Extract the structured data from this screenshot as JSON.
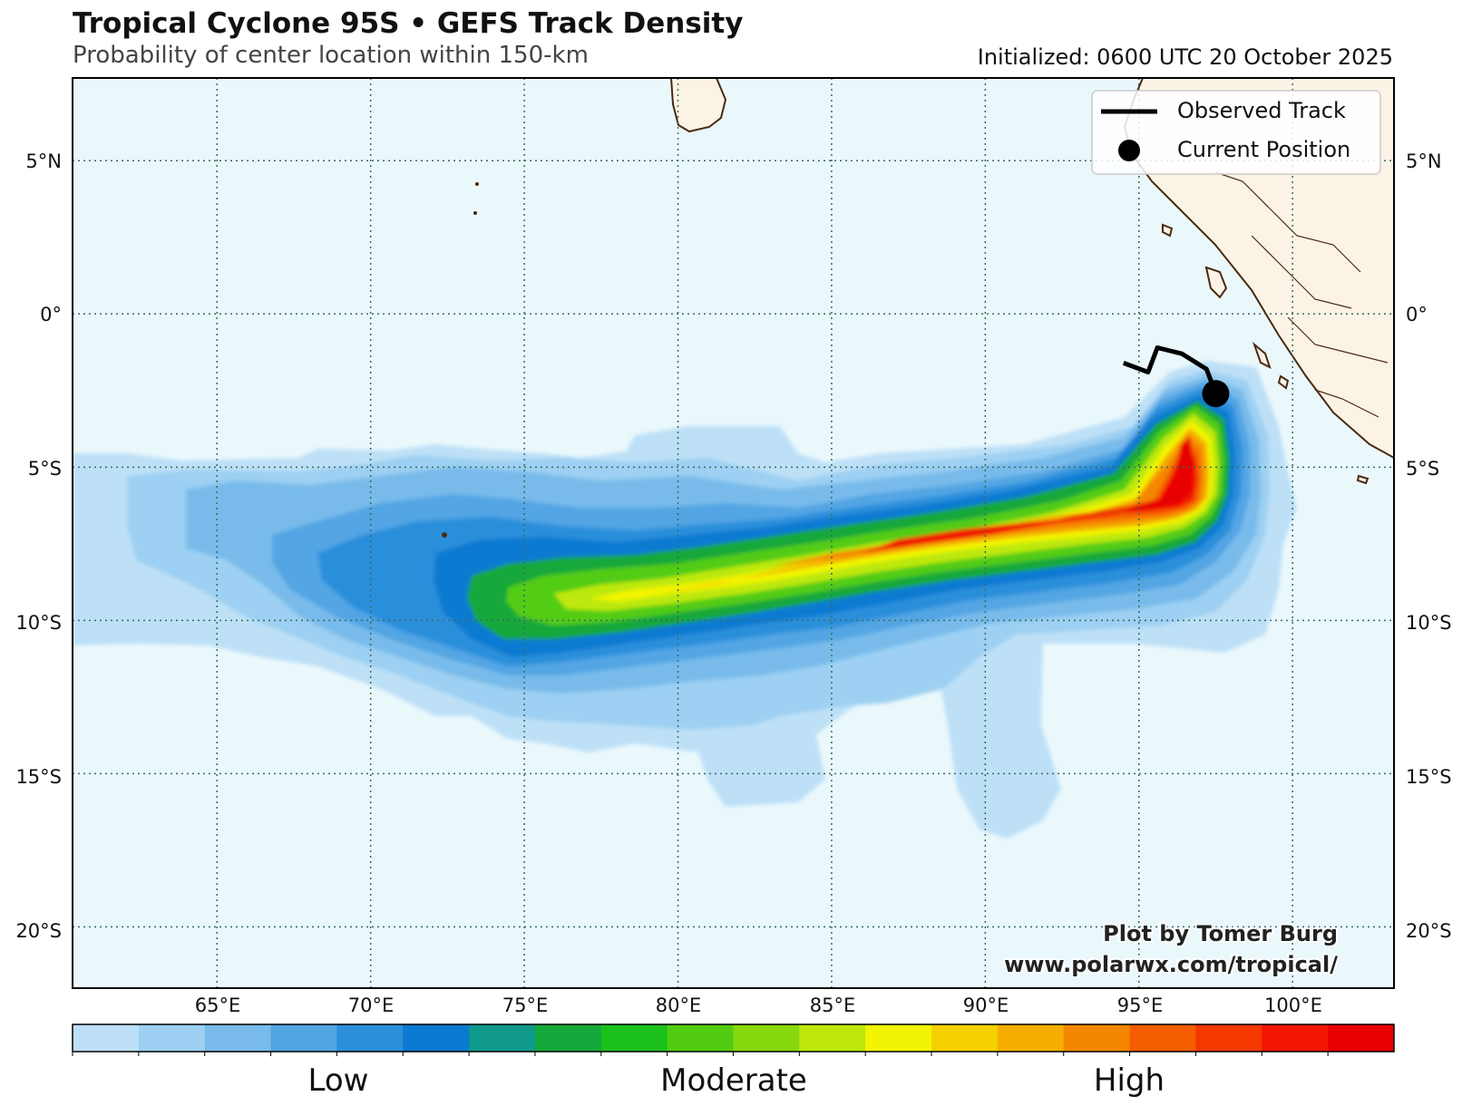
{
  "title": "Tropical Cyclone 95S • GEFS Track Density",
  "subtitle": "Probability of center location within 150-km",
  "initialized": "Initialized: 0600 UTC 20 October 2025",
  "lat_labels": [
    "5°N",
    "0°",
    "5°S",
    "10°S",
    "15°S",
    "20°S"
  ],
  "lon_labels": [
    "65°E",
    "70°E",
    "75°E",
    "80°E",
    "85°E",
    "90°E",
    "95°E",
    "100°E"
  ],
  "legend": {
    "observed_track": "Observed Track",
    "current_position": "Current Position"
  },
  "colorbar": {
    "labels": [
      "Low",
      "Moderate",
      "High"
    ],
    "colors": [
      "#bde0f7",
      "#9dd0f2",
      "#78bbeb",
      "#52a5e3",
      "#2b8fdb",
      "#0a7ad2",
      "#0f9a8c",
      "#15a83a",
      "#1bc01b",
      "#52cc12",
      "#87d80e",
      "#bde80a",
      "#f2f404",
      "#f5d000",
      "#f5ae00",
      "#f58600",
      "#f55d00",
      "#f53700",
      "#f21500",
      "#e80000"
    ]
  },
  "credit": {
    "line1": "Plot by Tomer Burg",
    "line2": "www.polarwx.com/tropical/"
  },
  "colors": {
    "ocean": "#eaf8fc",
    "land": "#fbf3e6",
    "coast": "#4a2a12",
    "grid": "#3a6b5a",
    "track": "#000000"
  },
  "map_extent": {
    "lon": [
      60.3,
      103.3
    ],
    "lat": [
      -22,
      7.7
    ]
  },
  "storm": {
    "observed_track": [
      [
        94.5,
        -1.6
      ],
      [
        95.3,
        -1.9
      ],
      [
        95.6,
        -1.1
      ],
      [
        96.4,
        -1.3
      ],
      [
        97.2,
        -1.8
      ],
      [
        97.5,
        -2.6
      ]
    ],
    "current_position": [
      97.5,
      -2.6
    ]
  }
}
